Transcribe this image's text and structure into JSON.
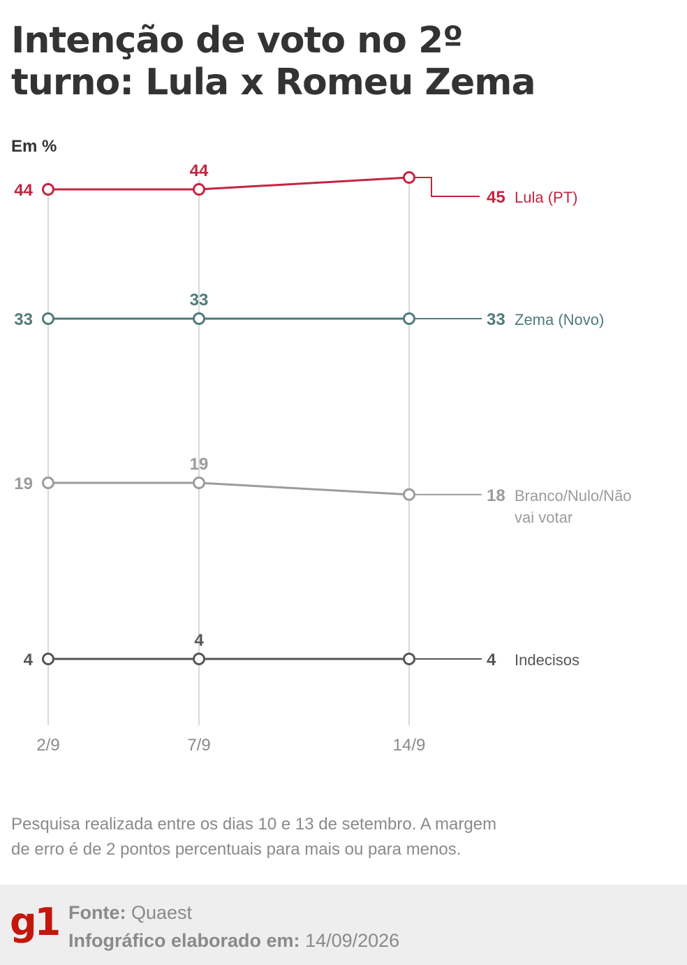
{
  "title_lines": [
    "Intenção de voto no 2º",
    "turno: Lula x Romeu Zema"
  ],
  "unit_label": "Em %",
  "note_lines": [
    "Pesquisa realizada entre os dias 10 e 13 de setembro. A margem",
    "de erro é de 2 pontos percentuais para mais ou para menos."
  ],
  "footer": {
    "logo": "g1",
    "source_label": "Fonte:",
    "source_value": "Quaest",
    "made_label": "Infográfico elaborado em:",
    "made_value": "14/09/2026"
  },
  "colors": {
    "Lula": "#c4253f",
    "Zema": "#4e7b79",
    "Branco": "#9b9b9b",
    "Indecisos": "#555555",
    "grid": "#d9d9d9"
  },
  "chart_data": {
    "type": "line",
    "title": "Intenção de voto no 2º turno: Lula x Romeu Zema",
    "ylabel": "Em %",
    "categories": [
      "2/9",
      "7/9",
      "14/9"
    ],
    "grid": "vertical",
    "series": [
      {
        "name": "Lula (PT)",
        "key": "Lula",
        "values": [
          44,
          44,
          45
        ],
        "label_lines": [
          "Lula (PT)"
        ]
      },
      {
        "name": "Zema (Novo)",
        "key": "Zema",
        "values": [
          33,
          33,
          33
        ],
        "label_lines": [
          "Zema (Novo)"
        ]
      },
      {
        "name": "Branco/Nulo/Não vai votar",
        "key": "Branco",
        "values": [
          19,
          19,
          18
        ],
        "label_lines": [
          "Branco/Nulo/Não",
          "vai votar"
        ]
      },
      {
        "name": "Indecisos",
        "key": "Indecisos",
        "values": [
          4,
          4,
          4
        ],
        "label_lines": [
          "Indecisos"
        ]
      }
    ]
  }
}
